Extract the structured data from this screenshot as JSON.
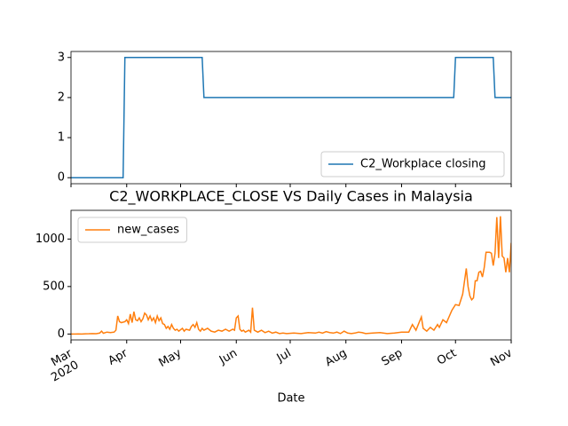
{
  "chart_data": [
    {
      "type": "line",
      "series": [
        {
          "name": "C2_Workplace closing",
          "color": "#1f77b4",
          "x": [
            0,
            29,
            30,
            73,
            74,
            213,
            214,
            235,
            236,
            245
          ],
          "values": [
            0,
            0,
            3,
            3,
            2,
            2,
            3,
            3,
            2,
            2
          ]
        }
      ],
      "xlim": [
        0,
        245
      ],
      "xticks": [
        0,
        31,
        61,
        92,
        122,
        153,
        184,
        214,
        245
      ],
      "ylim": [
        -0.15,
        3.15
      ],
      "yticks": [
        0,
        1,
        2,
        3
      ],
      "legend": "lower right"
    },
    {
      "type": "line",
      "title": "C2_WORKPLACE_CLOSE VS Daily Cases in Malaysia",
      "xlabel": "Date",
      "series": [
        {
          "name": "new_cases",
          "color": "#ff7f0e",
          "x": [
            0,
            2,
            4,
            6,
            8,
            10,
            12,
            14,
            16,
            17,
            18,
            20,
            22,
            24,
            25,
            26,
            27,
            28,
            30,
            31,
            32,
            33,
            34,
            35,
            36,
            37,
            38,
            39,
            40,
            41,
            42,
            43,
            44,
            45,
            46,
            47,
            48,
            49,
            50,
            51,
            52,
            53,
            54,
            55,
            56,
            57,
            58,
            59,
            60,
            62,
            63,
            64,
            66,
            67,
            68,
            69,
            70,
            71,
            72,
            73,
            74,
            76,
            78,
            80,
            82,
            84,
            86,
            88,
            90,
            91,
            92,
            93,
            94,
            95,
            96,
            97,
            98,
            99,
            100,
            101,
            102,
            103,
            104,
            106,
            108,
            110,
            112,
            114,
            116,
            118,
            120,
            124,
            128,
            132,
            136,
            138,
            140,
            142,
            144,
            146,
            148,
            150,
            152,
            154,
            156,
            158,
            160,
            162,
            164,
            168,
            172,
            176,
            180,
            184,
            188,
            190,
            192,
            195,
            196,
            198,
            200,
            202,
            204,
            205,
            207,
            209,
            212,
            214,
            216,
            218,
            220,
            221,
            222,
            223,
            224,
            225,
            226,
            227,
            228,
            229,
            230,
            231,
            232,
            233,
            234,
            235,
            236,
            237,
            238,
            239,
            240,
            241,
            242,
            243,
            244,
            245
          ],
          "values": [
            0,
            0,
            1,
            0,
            2,
            3,
            5,
            4,
            10,
            30,
            8,
            20,
            15,
            20,
            40,
            190,
            130,
            120,
            130,
            150,
            110,
            210,
            120,
            235,
            150,
            140,
            170,
            130,
            160,
            220,
            200,
            150,
            190,
            140,
            170,
            120,
            190,
            140,
            170,
            110,
            100,
            60,
            80,
            50,
            100,
            60,
            40,
            50,
            30,
            60,
            30,
            50,
            40,
            80,
            100,
            70,
            120,
            50,
            30,
            60,
            40,
            60,
            30,
            20,
            40,
            30,
            50,
            30,
            50,
            40,
            170,
            190,
            50,
            30,
            40,
            20,
            30,
            40,
            20,
            277,
            40,
            30,
            20,
            40,
            15,
            30,
            10,
            20,
            5,
            10,
            5,
            10,
            5,
            15,
            10,
            20,
            10,
            25,
            15,
            10,
            20,
            5,
            30,
            10,
            5,
            10,
            20,
            15,
            5,
            10,
            15,
            5,
            10,
            20,
            20,
            100,
            40,
            180,
            60,
            30,
            70,
            40,
            100,
            70,
            150,
            120,
            250,
            310,
            300,
            420,
            690,
            500,
            400,
            360,
            380,
            560,
            560,
            650,
            660,
            600,
            700,
            860,
            860,
            860,
            850,
            720,
            850,
            1230,
            800,
            1240,
            820,
            800,
            650,
            800,
            650,
            960
          ]
        }
      ],
      "xlim": [
        0,
        245
      ],
      "xticks": [
        {
          "value": 0,
          "label": "Mar\n2020"
        },
        {
          "value": 31,
          "label": "Apr"
        },
        {
          "value": 61,
          "label": "May"
        },
        {
          "value": 92,
          "label": "Jun"
        },
        {
          "value": 122,
          "label": "Jul"
        },
        {
          "value": 153,
          "label": "Aug"
        },
        {
          "value": 184,
          "label": "Sep"
        },
        {
          "value": 214,
          "label": "Oct"
        },
        {
          "value": 245,
          "label": "Nov"
        }
      ],
      "ylim": [
        -62,
        1302
      ],
      "yticks": [
        0,
        500,
        1000
      ],
      "legend": "upper left"
    }
  ]
}
